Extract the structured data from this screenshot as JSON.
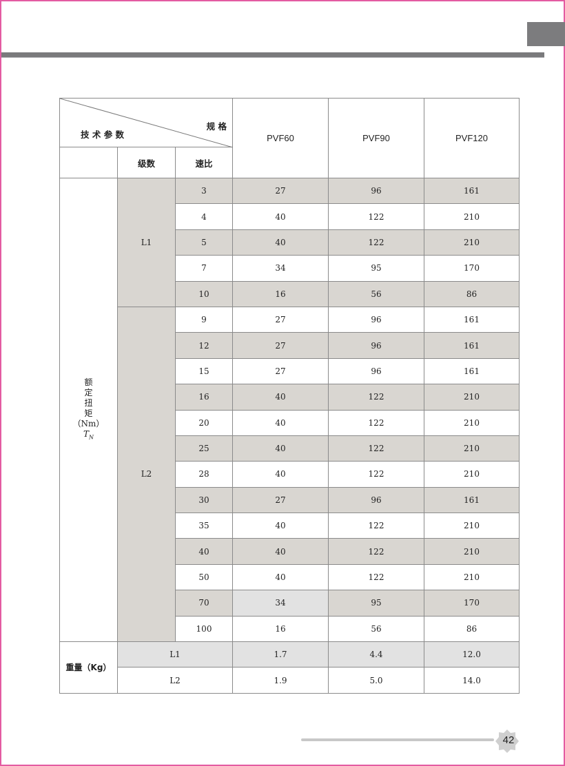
{
  "header": {
    "corner_top": "规 格",
    "corner_bottom": "技 术 参 数",
    "stage_label": "级数",
    "ratio_label": "速比",
    "models": [
      "PVF60",
      "PVF90",
      "PVF120"
    ]
  },
  "torque": {
    "label_chars": [
      "额",
      "定",
      "扭",
      "矩",
      "（Nm）"
    ],
    "symbol": "T",
    "symbol_sub": "N",
    "groups": [
      {
        "stage": "L1",
        "rows": [
          {
            "ratio": "3",
            "values": [
              "27",
              "96",
              "161"
            ],
            "shaded": true
          },
          {
            "ratio": "4",
            "values": [
              "40",
              "122",
              "210"
            ],
            "shaded": false
          },
          {
            "ratio": "5",
            "values": [
              "40",
              "122",
              "210"
            ],
            "shaded": true
          },
          {
            "ratio": "7",
            "values": [
              "34",
              "95",
              "170"
            ],
            "shaded": false
          },
          {
            "ratio": "10",
            "values": [
              "16",
              "56",
              "86"
            ],
            "shaded": true
          }
        ]
      },
      {
        "stage": "L2",
        "rows": [
          {
            "ratio": "9",
            "values": [
              "27",
              "96",
              "161"
            ],
            "shaded": false
          },
          {
            "ratio": "12",
            "values": [
              "27",
              "96",
              "161"
            ],
            "shaded": true
          },
          {
            "ratio": "15",
            "values": [
              "27",
              "96",
              "161"
            ],
            "shaded": false
          },
          {
            "ratio": "16",
            "values": [
              "40",
              "122",
              "210"
            ],
            "shaded": true
          },
          {
            "ratio": "20",
            "values": [
              "40",
              "122",
              "210"
            ],
            "shaded": false
          },
          {
            "ratio": "25",
            "values": [
              "40",
              "122",
              "210"
            ],
            "shaded": true
          },
          {
            "ratio": "28",
            "values": [
              "40",
              "122",
              "210"
            ],
            "shaded": false
          },
          {
            "ratio": "30",
            "values": [
              "27",
              "96",
              "161"
            ],
            "shaded": true
          },
          {
            "ratio": "35",
            "values": [
              "40",
              "122",
              "210"
            ],
            "shaded": false
          },
          {
            "ratio": "40",
            "values": [
              "40",
              "122",
              "210"
            ],
            "shaded": true
          },
          {
            "ratio": "50",
            "values": [
              "40",
              "122",
              "210"
            ],
            "shaded": false
          },
          {
            "ratio": "70",
            "values": [
              "34",
              "95",
              "170"
            ],
            "shaded": true
          },
          {
            "ratio": "100",
            "values": [
              "16",
              "56",
              "86"
            ],
            "shaded": false
          }
        ]
      }
    ]
  },
  "weight": {
    "label": "重量（Kg）",
    "rows": [
      {
        "stage": "L1",
        "values": [
          "1.7",
          "4.4",
          "12.0"
        ],
        "shaded": true
      },
      {
        "stage": "L2",
        "values": [
          "1.9",
          "5.0",
          "14.0"
        ],
        "shaded": false
      }
    ]
  },
  "page_number": "42",
  "colors": {
    "border": "#e35ba2",
    "bar": "#7a7a7c",
    "shade": "#d9d6d1",
    "light_shade": "#e2e2e2"
  }
}
